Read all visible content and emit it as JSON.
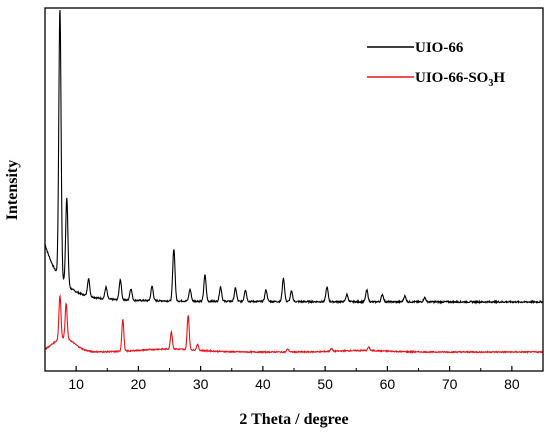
{
  "chart_data": {
    "type": "line",
    "title": "",
    "xlabel": "2 Theta / degree",
    "ylabel": "Intensity",
    "xlim": [
      5,
      85
    ],
    "xticks": [
      10,
      20,
      30,
      40,
      50,
      60,
      70,
      80
    ],
    "y_tick_labels": false,
    "grid": false,
    "legend_position": "top-right",
    "series": [
      {
        "name": "UIO-66",
        "color": "#000000",
        "peaks": [
          [
            7.4,
            0.93
          ],
          [
            8.5,
            0.3
          ],
          [
            12.0,
            0.06
          ],
          [
            14.8,
            0.04
          ],
          [
            17.1,
            0.07
          ],
          [
            18.8,
            0.04
          ],
          [
            22.2,
            0.05
          ],
          [
            25.7,
            0.18
          ],
          [
            28.3,
            0.04
          ],
          [
            30.7,
            0.09
          ],
          [
            33.2,
            0.05
          ],
          [
            35.6,
            0.045
          ],
          [
            37.2,
            0.04
          ],
          [
            40.5,
            0.04
          ],
          [
            43.3,
            0.08
          ],
          [
            44.6,
            0.035
          ],
          [
            50.3,
            0.05
          ],
          [
            53.5,
            0.025
          ],
          [
            56.7,
            0.04
          ],
          [
            59.2,
            0.025
          ],
          [
            62.8,
            0.02
          ],
          [
            66.0,
            0.015
          ]
        ]
      },
      {
        "name": "UIO-66-SO3H",
        "name_main": "UIO-66-SO",
        "name_sub": "3",
        "name_end": "H",
        "color": "#e8141b",
        "peaks": [
          [
            7.4,
            0.15
          ],
          [
            8.4,
            0.12
          ],
          [
            17.5,
            0.11
          ],
          [
            25.3,
            0.06
          ],
          [
            28.0,
            0.12
          ],
          [
            29.5,
            0.02
          ],
          [
            44.0,
            0.01
          ],
          [
            51.0,
            0.01
          ],
          [
            57.0,
            0.012
          ]
        ]
      }
    ]
  }
}
